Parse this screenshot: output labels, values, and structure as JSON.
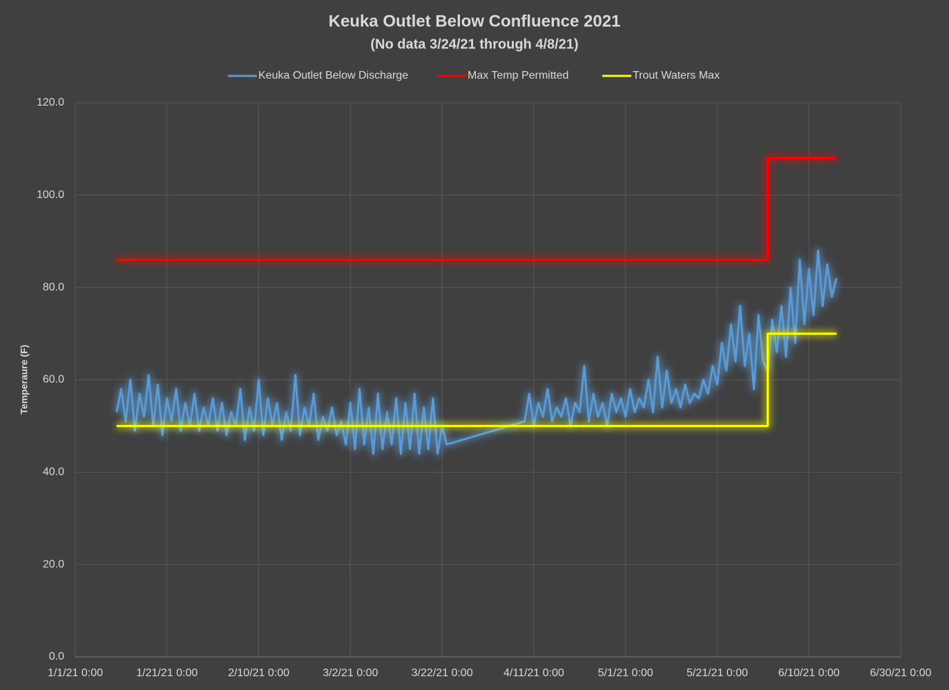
{
  "chart_data": {
    "type": "line",
    "title": "Keuka Outlet Below Confluence 2021",
    "subtitle": "(No data 3/24/21 through 4/8/21)",
    "y_label": "Temperaure (F)",
    "legend": "top",
    "grid": true,
    "xlim": [
      "1/1/21 0:00",
      "6/30/21 0:00"
    ],
    "xticks": [
      "1/1/21 0:00",
      "1/21/21 0:00",
      "2/10/21 0:00",
      "3/2/21 0:00",
      "3/22/21 0:00",
      "4/11/21 0:00",
      "5/1/21 0:00",
      "5/21/21 0:00",
      "6/10/21 0:00",
      "6/30/21 0:00"
    ],
    "ylim": [
      0,
      120
    ],
    "yticks": [
      {
        "value": 0,
        "label": "0.0"
      },
      {
        "value": 20,
        "label": "20.0"
      },
      {
        "value": 40,
        "label": "40.0"
      },
      {
        "value": 60,
        "label": "60.0"
      },
      {
        "value": 80,
        "label": "80.0"
      },
      {
        "value": 100,
        "label": "100.0"
      },
      {
        "value": 120,
        "label": "120.0"
      }
    ],
    "series": [
      {
        "name": "Keuka Outlet Below Discharge",
        "color": "#5b9bd5",
        "x": [
          "1/10/21 0:00",
          "1/11/21 0:00",
          "1/12/21 0:00",
          "1/13/21 0:00",
          "1/14/21 0:00",
          "1/15/21 0:00",
          "1/16/21 0:00",
          "1/17/21 0:00",
          "1/18/21 0:00",
          "1/19/21 0:00",
          "1/20/21 0:00",
          "1/21/21 0:00",
          "1/22/21 0:00",
          "1/23/21 0:00",
          "1/24/21 0:00",
          "1/25/21 0:00",
          "1/26/21 0:00",
          "1/27/21 0:00",
          "1/28/21 0:00",
          "1/29/21 0:00",
          "1/30/21 0:00",
          "1/31/21 0:00",
          "2/1/21 0:00",
          "2/2/21 0:00",
          "2/3/21 0:00",
          "2/4/21 0:00",
          "2/5/21 0:00",
          "2/6/21 0:00",
          "2/7/21 0:00",
          "2/8/21 0:00",
          "2/9/21 0:00",
          "2/10/21 0:00",
          "2/11/21 0:00",
          "2/12/21 0:00",
          "2/13/21 0:00",
          "2/14/21 0:00",
          "2/15/21 0:00",
          "2/16/21 0:00",
          "2/17/21 0:00",
          "2/18/21 0:00",
          "2/19/21 0:00",
          "2/20/21 0:00",
          "2/21/21 0:00",
          "2/22/21 0:00",
          "2/23/21 0:00",
          "2/24/21 0:00",
          "2/25/21 0:00",
          "2/26/21 0:00",
          "2/27/21 0:00",
          "2/28/21 0:00",
          "3/1/21 0:00",
          "3/2/21 0:00",
          "3/3/21 0:00",
          "3/4/21 0:00",
          "3/5/21 0:00",
          "3/6/21 0:00",
          "3/7/21 0:00",
          "3/8/21 0:00",
          "3/9/21 0:00",
          "3/10/21 0:00",
          "3/11/21 0:00",
          "3/12/21 0:00",
          "3/13/21 0:00",
          "3/14/21 0:00",
          "3/15/21 0:00",
          "3/16/21 0:00",
          "3/17/21 0:00",
          "3/18/21 0:00",
          "3/19/21 0:00",
          "3/20/21 0:00",
          "3/21/21 0:00",
          "3/22/21 0:00",
          "3/23/21 0:00",
          "4/9/21 0:00",
          "4/10/21 0:00",
          "4/11/21 0:00",
          "4/12/21 0:00",
          "4/13/21 0:00",
          "4/14/21 0:00",
          "4/15/21 0:00",
          "4/16/21 0:00",
          "4/17/21 0:00",
          "4/18/21 0:00",
          "4/19/21 0:00",
          "4/20/21 0:00",
          "4/21/21 0:00",
          "4/22/21 0:00",
          "4/23/21 0:00",
          "4/24/21 0:00",
          "4/25/21 0:00",
          "4/26/21 0:00",
          "4/27/21 0:00",
          "4/28/21 0:00",
          "4/29/21 0:00",
          "4/30/21 0:00",
          "5/1/21 0:00",
          "5/2/21 0:00",
          "5/3/21 0:00",
          "5/4/21 0:00",
          "5/5/21 0:00",
          "5/6/21 0:00",
          "5/7/21 0:00",
          "5/8/21 0:00",
          "5/9/21 0:00",
          "5/10/21 0:00",
          "5/11/21 0:00",
          "5/12/21 0:00",
          "5/13/21 0:00",
          "5/14/21 0:00",
          "5/15/21 0:00",
          "5/16/21 0:00",
          "5/17/21 0:00",
          "5/18/21 0:00",
          "5/19/21 0:00",
          "5/20/21 0:00",
          "5/21/21 0:00",
          "5/22/21 0:00",
          "5/23/21 0:00",
          "5/24/21 0:00",
          "5/25/21 0:00",
          "5/26/21 0:00",
          "5/27/21 0:00",
          "5/28/21 0:00",
          "5/29/21 0:00",
          "5/30/21 0:00",
          "5/31/21 0:00",
          "6/1/21 0:00",
          "6/2/21 0:00",
          "6/3/21 0:00",
          "6/4/21 0:00",
          "6/5/21 0:00",
          "6/6/21 0:00",
          "6/7/21 0:00",
          "6/8/21 0:00",
          "6/9/21 0:00",
          "6/10/21 0:00",
          "6/11/21 0:00",
          "6/12/21 0:00",
          "6/13/21 0:00",
          "6/14/21 0:00",
          "6/15/21 0:00",
          "6/16/21 0:00"
        ],
        "values": [
          53,
          58,
          51,
          60,
          49,
          57,
          52,
          61,
          50,
          59,
          48,
          56,
          51,
          58,
          49,
          55,
          50,
          57,
          49,
          54,
          50,
          56,
          49,
          55,
          48,
          53,
          50,
          58,
          47,
          54,
          49,
          60,
          48,
          56,
          50,
          55,
          47,
          53,
          49,
          61,
          48,
          54,
          50,
          57,
          47,
          52,
          49,
          54,
          48,
          51,
          46,
          55,
          45,
          58,
          46,
          54,
          44,
          57,
          45,
          53,
          46,
          56,
          44,
          55,
          45,
          57,
          44,
          54,
          45,
          56,
          44,
          50,
          46,
          51,
          57,
          50,
          55,
          52,
          58,
          51,
          54,
          52,
          56,
          50,
          55,
          53,
          63,
          51,
          57,
          52,
          55,
          50,
          57,
          53,
          56,
          52,
          58,
          53,
          56,
          54,
          60,
          53,
          65,
          54,
          62,
          55,
          58,
          54,
          59,
          55,
          57,
          56,
          60,
          57,
          63,
          59,
          68,
          62,
          72,
          64,
          76,
          63,
          70,
          58,
          74,
          64,
          62,
          73,
          66,
          76,
          65,
          80,
          68,
          86,
          72,
          84,
          74,
          88,
          76,
          85,
          78,
          82
        ]
      },
      {
        "name": "Max Temp Permitted",
        "color": "#ff0000",
        "x": [
          "1/10/21 0:00",
          "6/1/21 0:00",
          "6/1/21 0:00",
          "6/16/21 0:00"
        ],
        "values": [
          86,
          86,
          108,
          108
        ]
      },
      {
        "name": "Trout Waters Max",
        "color": "#ffff00",
        "x": [
          "1/10/21 0:00",
          "6/1/21 0:00",
          "6/1/21 0:00",
          "6/16/21 0:00"
        ],
        "values": [
          50,
          50,
          70,
          70
        ]
      }
    ]
  }
}
